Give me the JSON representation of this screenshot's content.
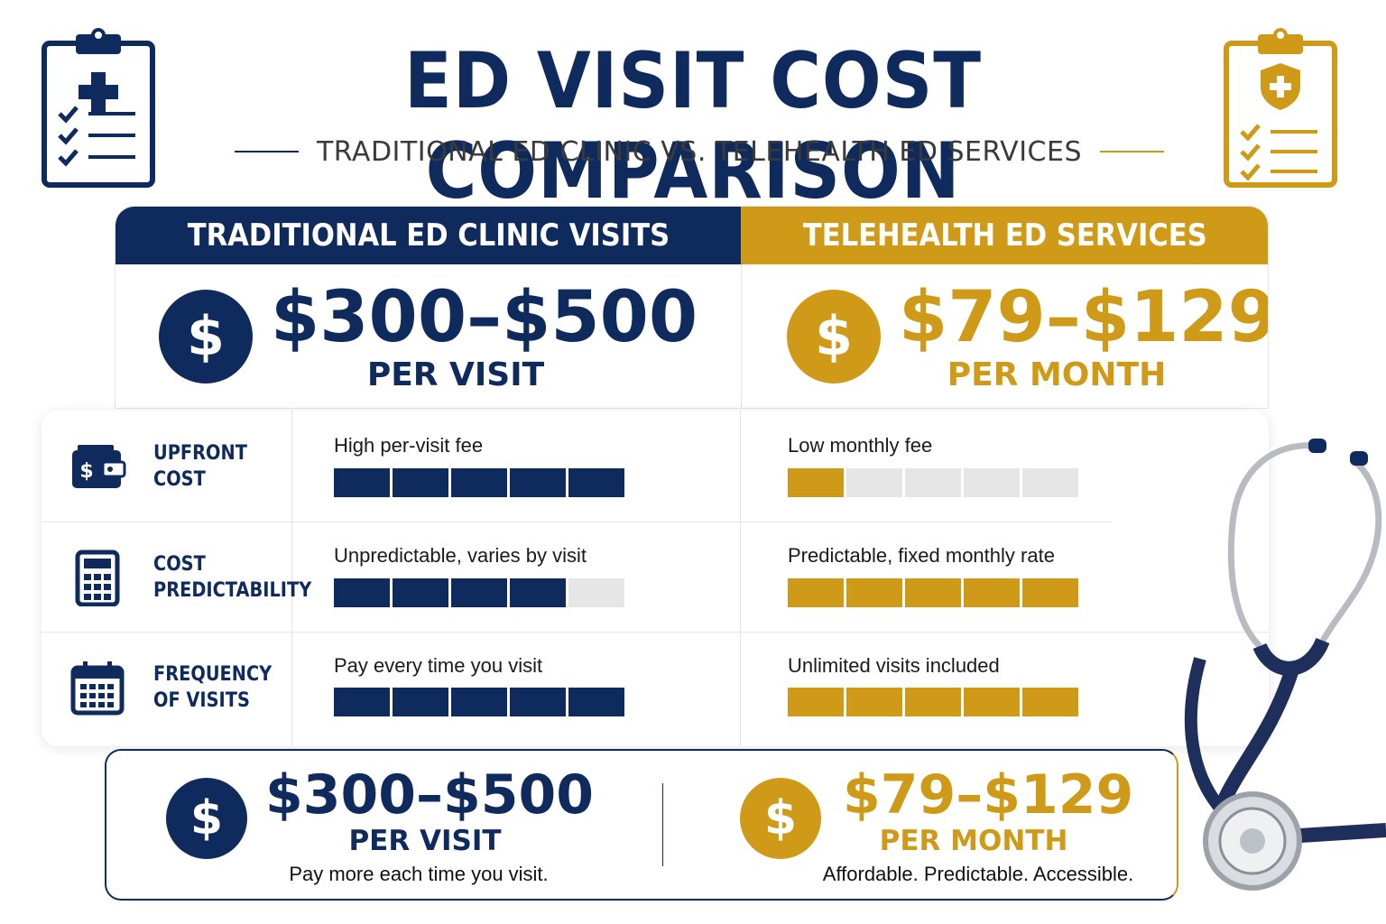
{
  "header": {
    "title": "ED VISIT COST COMPARISON",
    "subtitle": "TRADITIONAL ED CLINIC VS. TELEHEALTH ED SERVICES",
    "left_icon": "clipboard-medical-cross-icon",
    "right_icon": "clipboard-shield-icon"
  },
  "columns": {
    "traditional": {
      "heading": "TRADITIONAL ED CLINIC VISITS",
      "price": "$300–$500",
      "unit": "PER VISIT",
      "color": "#0f2a5c"
    },
    "telehealth": {
      "heading": "TELEHEALTH ED SERVICES",
      "price": "$79–$129",
      "unit": "PER MONTH",
      "color": "#cf9a17"
    }
  },
  "coin_symbol": "$",
  "rows": [
    {
      "label_line1": "UPFRONT",
      "label_line2": "COST",
      "icon": "wallet-icon",
      "traditional_desc": "High per-visit fee",
      "traditional_level": 5,
      "telehealth_desc": "Low monthly fee",
      "telehealth_level": 1,
      "scale_max": 5
    },
    {
      "label_line1": "COST",
      "label_line2": "PREDICTABILITY",
      "icon": "calculator-icon",
      "traditional_desc": "Unpredictable, varies by visit",
      "traditional_level": 4.3,
      "telehealth_desc": "Predictable, fixed monthly rate",
      "telehealth_level": 5,
      "scale_max": 5
    },
    {
      "label_line1": "FREQUENCY",
      "label_line2": "OF VISITS",
      "icon": "calendar-icon",
      "traditional_desc": "Pay every time you visit",
      "traditional_level": 5,
      "telehealth_desc": "Unlimited visits included",
      "telehealth_level": 5,
      "scale_max": 5
    }
  ],
  "summary": {
    "traditional": {
      "price": "$300–$500",
      "unit": "PER VISIT",
      "note": "Pay more each time you visit."
    },
    "telehealth": {
      "price": "$79–$129",
      "unit": "PER MONTH",
      "note": "Affordable. Predictable. Accessible."
    }
  },
  "decoration": "stethoscope-icon"
}
